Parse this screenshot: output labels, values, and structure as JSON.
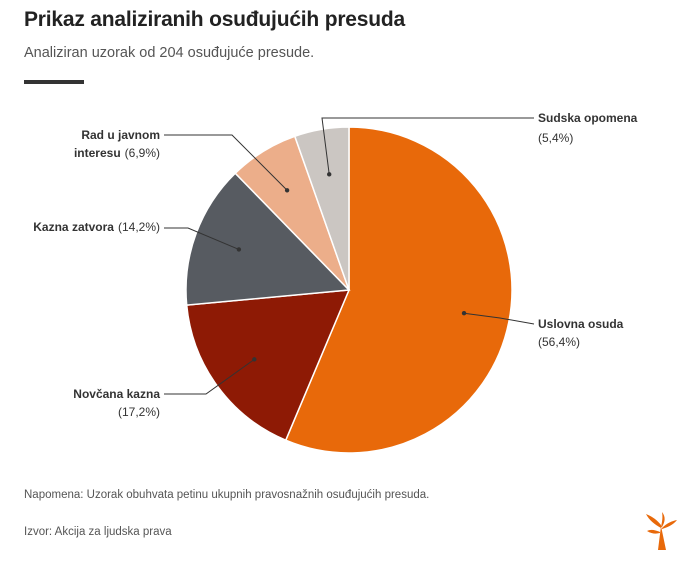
{
  "header": {
    "title": "Prikaz analiziranih osuđujućih presuda",
    "subtitle": "Analiziran uzorak od 204 osuđujuće presude."
  },
  "footer": {
    "note": "Napomena: Uzorak obuhvata petinu ukupnih pravosnažnih osuđujućih presuda.",
    "source": "Izvor: Akcija za ljudska prava"
  },
  "chart_data": {
    "type": "pie",
    "slices": [
      {
        "name": "Uslovna osuda",
        "value_label": "(56,4%)",
        "value": 56.4,
        "color": "#e8690a"
      },
      {
        "name": "Novčana kazna",
        "value_label": "(17,2%)",
        "value": 17.2,
        "color": "#8e1a05"
      },
      {
        "name": "Kazna zatvora",
        "value_label": "(14,2%)",
        "value": 14.2,
        "color": "#575b61"
      },
      {
        "name": "Rad u javnom interesu",
        "value_label": "(6,9%)",
        "value": 6.9,
        "color": "#ecae8a"
      },
      {
        "name": "Sudska opomena",
        "value_label": "(5,4%)",
        "value": 5.4,
        "color": "#cbc6c2"
      }
    ]
  }
}
